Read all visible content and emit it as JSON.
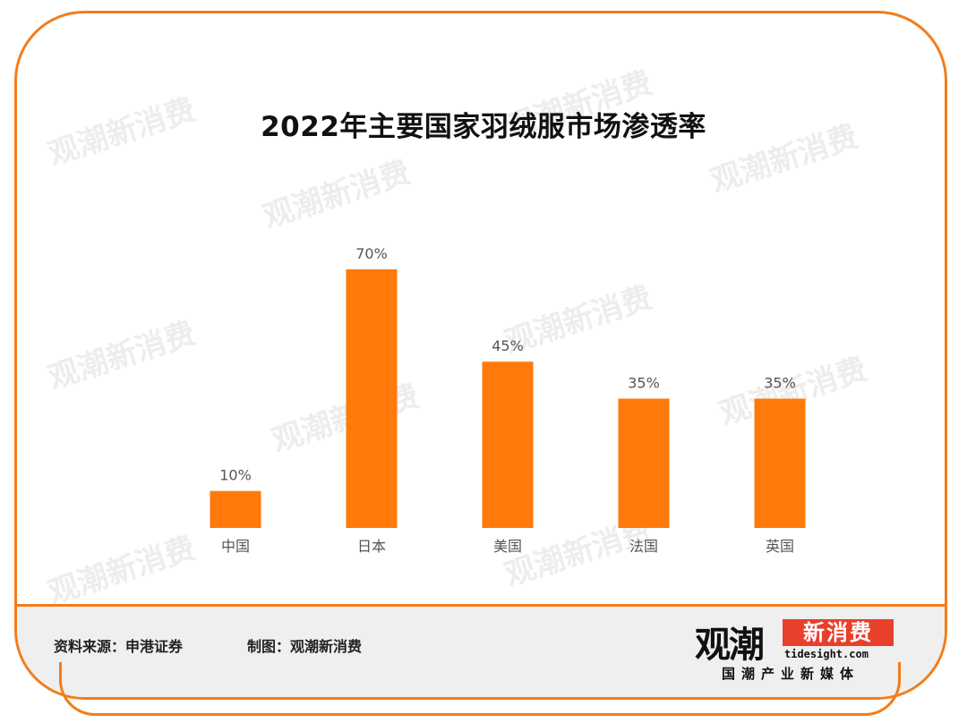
{
  "title": "2022年主要国家羽绒服市场渗透率",
  "footer": {
    "source": "资料来源：申港证券",
    "credit": "制图：观潮新消费"
  },
  "logo": {
    "main": "观潮",
    "side": "新消费",
    "domain": "tidesight.com",
    "tagline": "国潮产业新媒体"
  },
  "colors": {
    "bar": "#ff7a0a",
    "frame": "#f27d1c",
    "label": "#555555"
  },
  "chart_data": {
    "type": "bar",
    "title": "2022年主要国家羽绒服市场渗透率",
    "categories": [
      "中国",
      "日本",
      "美国",
      "法国",
      "英国"
    ],
    "values": [
      10,
      70,
      45,
      35,
      35
    ],
    "data_labels": [
      "10%",
      "70%",
      "45%",
      "35%",
      "35%"
    ],
    "unit": "%",
    "ylim": [
      0,
      70
    ],
    "grid": false,
    "legend": "none",
    "xlabel": "",
    "ylabel": ""
  }
}
